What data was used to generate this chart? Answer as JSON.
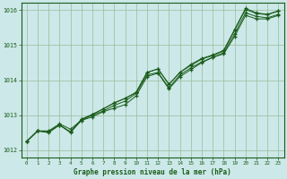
{
  "title": "Graphe pression niveau de la mer (hPa)",
  "bg_color": "#cce8e8",
  "plot_bg_color": "#cce8e8",
  "grid_color": "#99bb99",
  "line_color": "#1a5c1a",
  "marker_color": "#1a5c1a",
  "xlim": [
    -0.5,
    23.5
  ],
  "ylim": [
    1011.8,
    1016.2
  ],
  "xticks": [
    0,
    1,
    2,
    3,
    4,
    5,
    6,
    7,
    8,
    9,
    10,
    11,
    12,
    13,
    14,
    15,
    16,
    17,
    18,
    19,
    20,
    21,
    22,
    23
  ],
  "yticks": [
    1012,
    1013,
    1014,
    1015,
    1016
  ],
  "series": [
    [
      1012.25,
      1012.55,
      1012.55,
      1012.75,
      1012.6,
      1012.85,
      1012.95,
      1013.1,
      1013.2,
      1013.3,
      1013.55,
      1014.1,
      1014.2,
      1013.75,
      1014.1,
      1014.3,
      1014.5,
      1014.65,
      1014.75,
      1015.25,
      1015.85,
      1015.75,
      1015.75,
      1015.85
    ],
    [
      1012.25,
      1012.55,
      1012.5,
      1012.72,
      1012.5,
      1012.85,
      1013.0,
      1013.12,
      1013.28,
      1013.4,
      1013.62,
      1014.15,
      1014.22,
      1013.78,
      1014.15,
      1014.35,
      1014.52,
      1014.65,
      1014.78,
      1015.32,
      1015.92,
      1015.82,
      1015.78,
      1015.88
    ],
    [
      1012.25,
      1012.55,
      1012.52,
      1012.72,
      1012.52,
      1012.88,
      1013.02,
      1013.18,
      1013.35,
      1013.48,
      1013.65,
      1014.22,
      1014.32,
      1013.88,
      1014.22,
      1014.42,
      1014.6,
      1014.7,
      1014.83,
      1015.42,
      1016.02,
      1015.9,
      1015.87,
      1015.97
    ],
    [
      1012.25,
      1012.55,
      1012.52,
      1012.72,
      1012.52,
      1012.88,
      1013.02,
      1013.18,
      1013.35,
      1013.48,
      1013.65,
      1014.22,
      1014.32,
      1013.88,
      1014.22,
      1014.45,
      1014.62,
      1014.72,
      1014.85,
      1015.45,
      1016.05,
      1015.92,
      1015.88,
      1015.98
    ]
  ]
}
